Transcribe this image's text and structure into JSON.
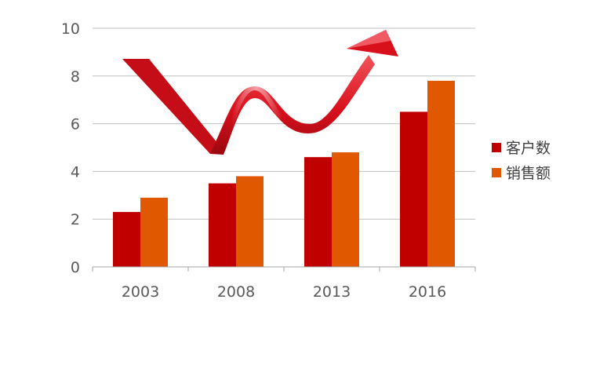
{
  "chart_data": {
    "type": "bar",
    "categories": [
      "2003",
      "2008",
      "2013",
      "2016"
    ],
    "series": [
      {
        "name": "客户数",
        "values": [
          2.3,
          3.5,
          4.6,
          6.5
        ],
        "color": "#c00000"
      },
      {
        "name": "销售额",
        "values": [
          2.9,
          3.8,
          4.8,
          7.8
        ],
        "color": "#e05800"
      }
    ],
    "ylim": [
      0,
      10
    ],
    "yticks": [
      0,
      2,
      4,
      6,
      8,
      10
    ],
    "grid": true,
    "legend": "right",
    "decoration": "red-arrow-icon",
    "colors": {
      "grid": "#bfbfbf",
      "axis": "#a6a6a6",
      "arrow": "#e0141e"
    }
  }
}
